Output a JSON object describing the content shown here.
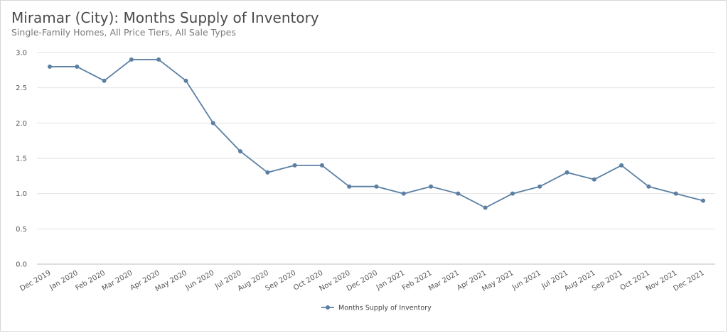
{
  "chart_data": {
    "type": "line",
    "title": "Miramar (City): Months Supply of Inventory",
    "subtitle": "Single-Family Homes, All Price Tiers, All Sale Types",
    "xlabel": "",
    "ylabel": "",
    "ylim": [
      0,
      3
    ],
    "yticks": [
      "0.0",
      "0.5",
      "1.0",
      "1.5",
      "2.0",
      "2.5",
      "3.0"
    ],
    "grid": true,
    "legend_position": "bottom-center",
    "categories": [
      "Dec 2019",
      "Jan 2020",
      "Feb 2020",
      "Mar 2020",
      "Apr 2020",
      "May 2020",
      "Jun 2020",
      "Jul 2020",
      "Aug 2020",
      "Sep 2020",
      "Oct 2020",
      "Nov 2020",
      "Dec 2020",
      "Jan 2021",
      "Feb 2021",
      "Mar 2021",
      "Apr 2021",
      "May 2021",
      "Jun 2021",
      "Jul 2021",
      "Aug 2021",
      "Sep 2021",
      "Oct 2021",
      "Nov 2021",
      "Dec 2021"
    ],
    "series": [
      {
        "name": "Months Supply of Inventory",
        "color": "#5a7fa3",
        "values": [
          2.8,
          2.8,
          2.6,
          2.9,
          2.9,
          2.6,
          2.0,
          1.6,
          1.3,
          1.4,
          1.4,
          1.1,
          1.1,
          1.0,
          1.1,
          1.0,
          0.8,
          1.0,
          1.1,
          1.3,
          1.2,
          1.4,
          1.1,
          1.0,
          0.9
        ]
      }
    ]
  }
}
